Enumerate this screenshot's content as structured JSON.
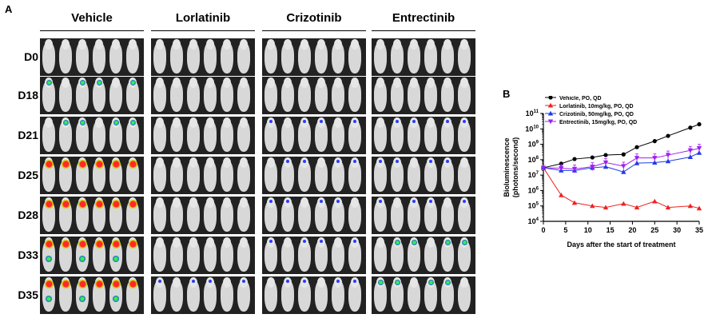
{
  "panel_a": {
    "label": "A",
    "groups": [
      "Vehicle",
      "Lorlatinib",
      "Crizotinib",
      "Entrectinib"
    ],
    "days": [
      "D0",
      "D18",
      "D21",
      "D25",
      "D28",
      "D33",
      "D35"
    ]
  },
  "panel_b": {
    "label": "B"
  },
  "chart_data": {
    "type": "line",
    "title": "",
    "xlabel": "Days after the start of treatment",
    "ylabel": "Bioluminescence (photons/second)",
    "ylabel_line1": "Bioluminescence",
    "ylabel_line2": "(photons/second)",
    "xlim": [
      0,
      35
    ],
    "x_ticks": [
      0,
      5,
      10,
      15,
      20,
      25,
      30,
      35
    ],
    "y_scale": "log",
    "ylim_exp": [
      4,
      11
    ],
    "y_tick_base": "10",
    "y_tick_exps": [
      4,
      5,
      6,
      7,
      8,
      9,
      10,
      11
    ],
    "legend_position": "top-left",
    "series": [
      {
        "name": "Vehicle, PO, QD",
        "color": "#000000",
        "marker": "circle",
        "x": [
          0,
          4,
          7,
          11,
          14,
          18,
          21,
          25,
          28,
          33,
          35
        ],
        "y": [
          30000000.0,
          55000000.0,
          110000000.0,
          140000000.0,
          200000000.0,
          220000000.0,
          650000000.0,
          1600000000.0,
          3500000000.0,
          12000000000.0,
          20000000000.0
        ]
      },
      {
        "name": "Lorlatinib, 10mg/kg, PO, QD",
        "color": "#ee2222",
        "marker": "triangle-up",
        "x": [
          0,
          4,
          7,
          11,
          14,
          18,
          21,
          25,
          28,
          33,
          35
        ],
        "y": [
          30000000.0,
          500000.0,
          160000.0,
          100000.0,
          80000.0,
          140000.0,
          80000.0,
          200000.0,
          80000.0,
          100000.0,
          70000.0
        ]
      },
      {
        "name": "Crizotinib, 50mg/kg, PO, QD",
        "color": "#1f3be6",
        "marker": "triangle-up",
        "x": [
          0,
          4,
          7,
          11,
          14,
          18,
          21,
          25,
          28,
          33,
          35
        ],
        "y": [
          30000000.0,
          20000000.0,
          20000000.0,
          30000000.0,
          35000000.0,
          16000000.0,
          60000000.0,
          65000000.0,
          80000000.0,
          150000000.0,
          280000000.0
        ]
      },
      {
        "name": "Entrectinib, 15mg/kg, PO, QD",
        "color": "#a020f0",
        "marker": "triangle-down",
        "x": [
          0,
          4,
          7,
          11,
          14,
          18,
          21,
          25,
          28,
          33,
          35
        ],
        "y": [
          30000000.0,
          28000000.0,
          25000000.0,
          35000000.0,
          65000000.0,
          38000000.0,
          130000000.0,
          130000000.0,
          200000000.0,
          400000000.0,
          550000000.0
        ]
      }
    ]
  }
}
